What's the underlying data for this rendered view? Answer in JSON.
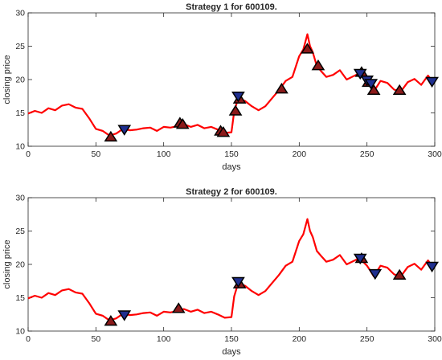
{
  "chart_data": [
    {
      "type": "line",
      "title": "Strategy 1 for 600109.",
      "xlabel": "days",
      "ylabel": "closing price",
      "xlim": [
        0,
        300
      ],
      "ylim": [
        10,
        30
      ],
      "xticks": [
        0,
        50,
        100,
        150,
        200,
        250,
        300
      ],
      "yticks": [
        10,
        15,
        20,
        25,
        30
      ],
      "grid": false,
      "colors": {
        "line": "#ff0000",
        "buy_marker": "#8b1a1a",
        "sell_marker": "#1f2f8f"
      },
      "series": [
        {
          "x": [
            0,
            5,
            10,
            15,
            20,
            25,
            30,
            35,
            40,
            45,
            50,
            55,
            60,
            65,
            70,
            75,
            80,
            85,
            90,
            95,
            100,
            105,
            110,
            115,
            120,
            125,
            130,
            135,
            140,
            145,
            150,
            152,
            155,
            160,
            165,
            170,
            175,
            180,
            185,
            190,
            195,
            200,
            203,
            206,
            208,
            210,
            213,
            216,
            220,
            225,
            230,
            235,
            240,
            245,
            248,
            250,
            252,
            255,
            260,
            265,
            270,
            275,
            280,
            285,
            290,
            295,
            298
          ],
          "y": [
            14.9,
            15.3,
            15.0,
            15.7,
            15.4,
            16.1,
            16.3,
            15.8,
            15.6,
            14.2,
            12.6,
            12.3,
            11.6,
            11.9,
            12.6,
            12.4,
            12.5,
            12.7,
            12.8,
            12.3,
            12.9,
            12.8,
            13.0,
            13.3,
            12.9,
            13.2,
            12.7,
            12.9,
            12.5,
            12.0,
            12.1,
            15.2,
            17.2,
            16.8,
            16.0,
            15.4,
            16.0,
            17.2,
            18.4,
            19.8,
            20.4,
            23.5,
            24.5,
            26.8,
            25.0,
            24.1,
            22.0,
            21.3,
            20.4,
            20.7,
            21.4,
            20.0,
            20.5,
            21.0,
            20.2,
            19.8,
            19.2,
            18.2,
            19.8,
            19.5,
            18.5,
            18.2,
            19.6,
            20.1,
            19.2,
            20.6,
            19.8
          ]
        }
      ],
      "buy_points": [
        {
          "x": 61,
          "y": 11.3
        },
        {
          "x": 112,
          "y": 13.4
        },
        {
          "x": 114,
          "y": 13.2
        },
        {
          "x": 142,
          "y": 12.2
        },
        {
          "x": 144,
          "y": 12.0
        },
        {
          "x": 153,
          "y": 15.2
        },
        {
          "x": 156,
          "y": 17.0
        },
        {
          "x": 187,
          "y": 18.5
        },
        {
          "x": 206,
          "y": 24.5
        },
        {
          "x": 214,
          "y": 22.0
        },
        {
          "x": 246,
          "y": 21.0
        },
        {
          "x": 251,
          "y": 19.5
        },
        {
          "x": 255,
          "y": 18.3
        },
        {
          "x": 274,
          "y": 18.3
        }
      ],
      "sell_points": [
        {
          "x": 71,
          "y": 12.6
        },
        {
          "x": 155,
          "y": 17.6
        },
        {
          "x": 245,
          "y": 21.0
        },
        {
          "x": 250,
          "y": 20.0
        },
        {
          "x": 253,
          "y": 19.5
        },
        {
          "x": 298,
          "y": 19.8
        }
      ]
    },
    {
      "type": "line",
      "title": "Strategy 2 for 600109.",
      "xlabel": "days",
      "ylabel": "closing price",
      "xlim": [
        0,
        300
      ],
      "ylim": [
        10,
        30
      ],
      "xticks": [
        0,
        50,
        100,
        150,
        200,
        250,
        300
      ],
      "yticks": [
        10,
        15,
        20,
        25,
        30
      ],
      "grid": false,
      "colors": {
        "line": "#ff0000",
        "buy_marker": "#8b1a1a",
        "sell_marker": "#1f2f8f"
      },
      "series": [
        {
          "x": [
            0,
            5,
            10,
            15,
            20,
            25,
            30,
            35,
            40,
            45,
            50,
            55,
            60,
            65,
            70,
            75,
            80,
            85,
            90,
            95,
            100,
            105,
            110,
            115,
            120,
            125,
            130,
            135,
            140,
            145,
            150,
            152,
            155,
            160,
            165,
            170,
            175,
            180,
            185,
            190,
            195,
            200,
            203,
            206,
            208,
            210,
            213,
            216,
            220,
            225,
            230,
            235,
            240,
            245,
            248,
            250,
            252,
            255,
            260,
            265,
            270,
            275,
            280,
            285,
            290,
            295,
            298
          ],
          "y": [
            14.9,
            15.3,
            15.0,
            15.7,
            15.4,
            16.1,
            16.3,
            15.8,
            15.6,
            14.2,
            12.6,
            12.3,
            11.6,
            11.9,
            12.6,
            12.4,
            12.5,
            12.7,
            12.8,
            12.3,
            12.9,
            12.8,
            13.0,
            13.3,
            12.9,
            13.2,
            12.7,
            12.9,
            12.5,
            12.0,
            12.1,
            15.2,
            17.2,
            16.8,
            16.0,
            15.4,
            16.0,
            17.2,
            18.4,
            19.8,
            20.4,
            23.5,
            24.5,
            26.8,
            25.0,
            24.1,
            22.0,
            21.3,
            20.4,
            20.7,
            21.4,
            20.0,
            20.5,
            21.0,
            20.2,
            19.8,
            19.2,
            18.2,
            19.8,
            19.5,
            18.5,
            18.2,
            19.6,
            20.1,
            19.2,
            20.6,
            19.8
          ]
        }
      ],
      "buy_points": [
        {
          "x": 61,
          "y": 11.4
        },
        {
          "x": 111,
          "y": 13.3
        },
        {
          "x": 156,
          "y": 17.0
        },
        {
          "x": 246,
          "y": 20.8
        },
        {
          "x": 274,
          "y": 18.3
        }
      ],
      "sell_points": [
        {
          "x": 71,
          "y": 12.5
        },
        {
          "x": 155,
          "y": 17.5
        },
        {
          "x": 245,
          "y": 21.0
        },
        {
          "x": 256,
          "y": 18.7
        },
        {
          "x": 298,
          "y": 19.8
        }
      ]
    }
  ]
}
